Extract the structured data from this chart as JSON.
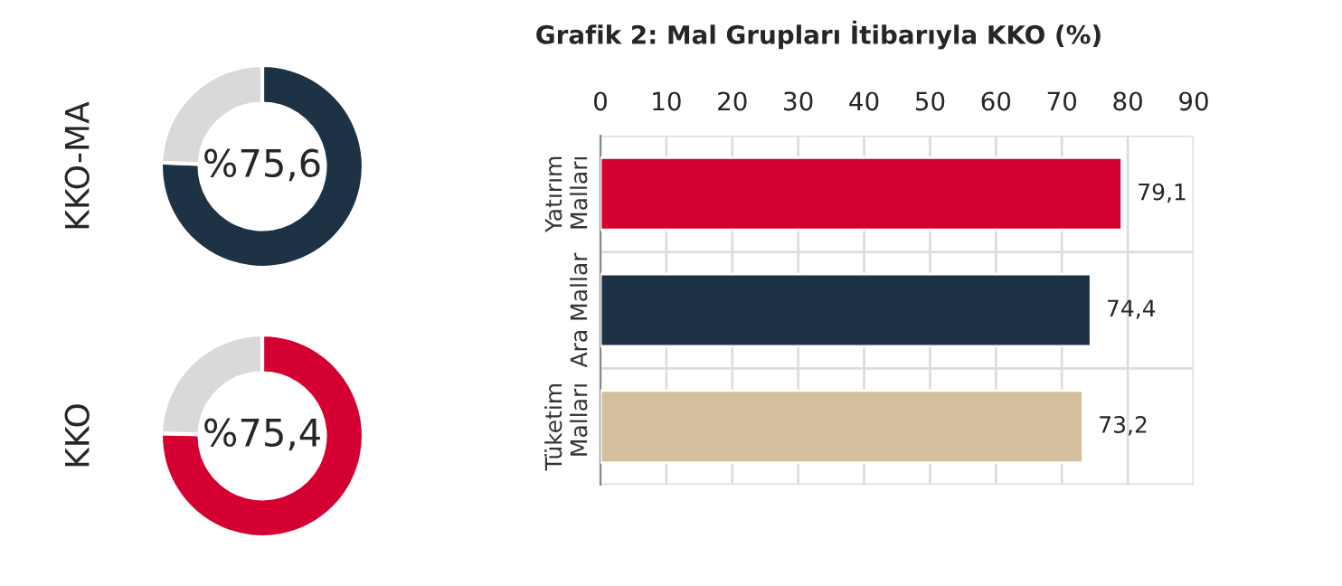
{
  "chart_data": [
    {
      "type": "donut",
      "categories": [
        null,
        null
      ],
      "values": [
        75.6,
        24.4
      ],
      "colors": [
        "#1e3246",
        "#d9d9d9"
      ],
      "ylabel": "KKO-MA",
      "annotations": [
        "%75,6"
      ]
    },
    {
      "type": "donut",
      "categories": [
        null,
        null
      ],
      "values": [
        75.4,
        24.6
      ],
      "colors": [
        "#d50032",
        "#d9d9d9"
      ],
      "ylabel": "KKO",
      "annotations": [
        "%75,4"
      ]
    },
    {
      "type": "bar",
      "orientation": "horizontal",
      "title": "Grafik 2: Mal Grupları İtibarıyla KKO (%)",
      "categories": [
        "Yatırım\nMalları",
        "Ara Mallar",
        "Tüketim\nMalları"
      ],
      "values": [
        79.1,
        74.4,
        73.2
      ],
      "colors": [
        "#d50032",
        "#1e3246",
        "#d4bf9c"
      ],
      "value_labels": [
        "79,1",
        "74,4",
        "73,2"
      ],
      "xlim": [
        0,
        90
      ],
      "xticks": [
        0,
        10,
        20,
        30,
        40,
        50,
        60,
        70,
        80,
        90
      ],
      "grid": true
    }
  ]
}
